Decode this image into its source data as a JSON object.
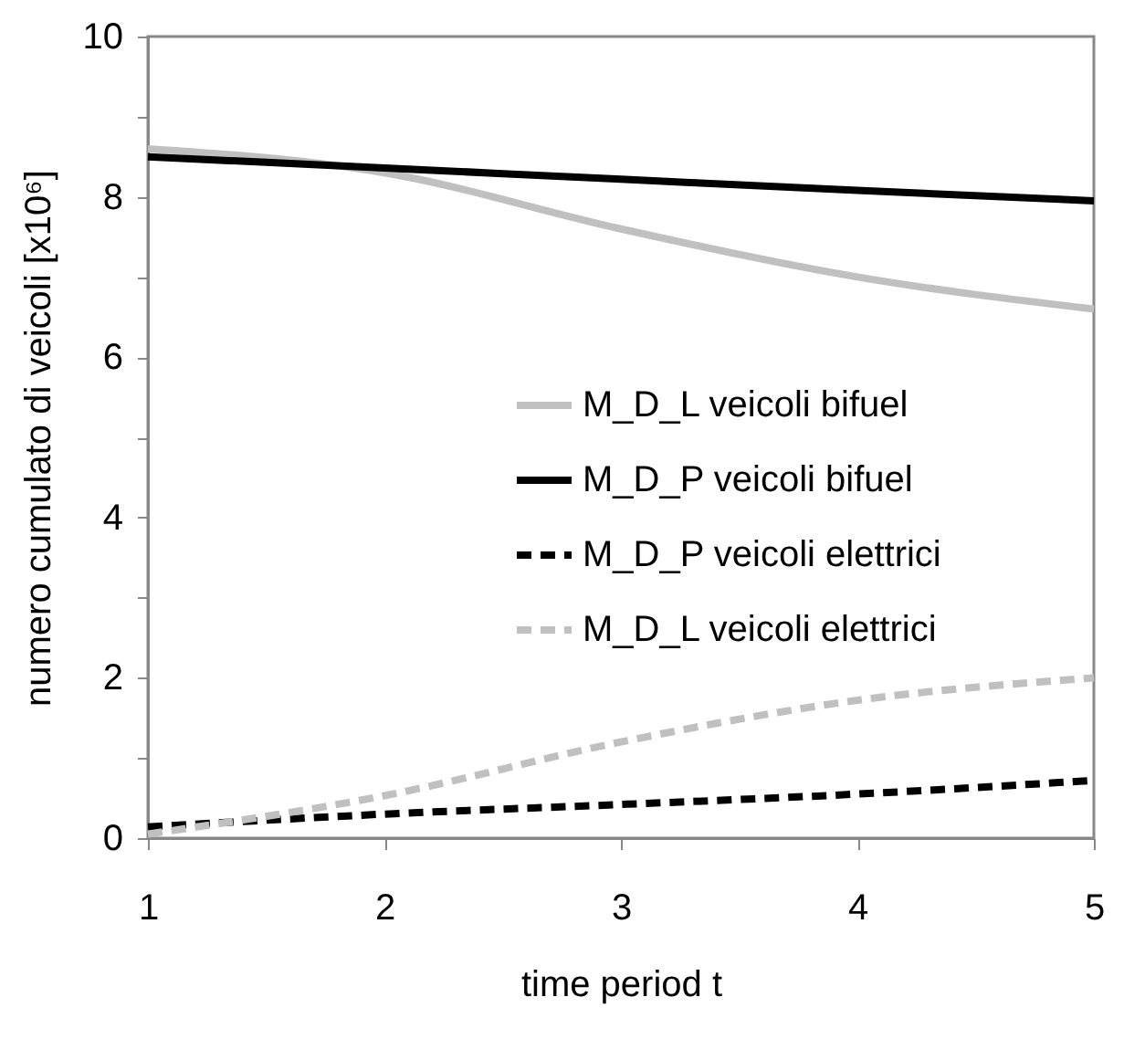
{
  "chart_data": {
    "type": "line",
    "xlabel": "time period t",
    "ylabel": "numero cumulato di veicoli [x10⁶]",
    "x": [
      1,
      2,
      3,
      4,
      5
    ],
    "series": [
      {
        "name": "M_D_L veicoli bifuel",
        "color": "#c0c0c0",
        "line_style": "solid",
        "values": [
          8.6,
          8.3,
          7.6,
          7.0,
          6.6
        ]
      },
      {
        "name": "M_D_P veicoli bifuel",
        "color": "#000000",
        "line_style": "solid",
        "values": [
          8.5,
          8.36,
          8.22,
          8.08,
          7.95
        ]
      },
      {
        "name": "M_D_P veicoli elettrici",
        "color": "#000000",
        "line_style": "dashed",
        "values": [
          0.14,
          0.3,
          0.42,
          0.55,
          0.72
        ]
      },
      {
        "name": "M_D_L veicoli elettrici",
        "color": "#c0c0c0",
        "line_style": "dashed",
        "values": [
          0.05,
          0.53,
          1.2,
          1.72,
          2.0
        ]
      }
    ],
    "xlim": [
      1,
      5
    ],
    "xticks": [
      1,
      2,
      3,
      4,
      5
    ],
    "ylim": [
      0,
      10
    ],
    "yticks": [
      0,
      {
        "value": 1,
        "label": null
      },
      2,
      {
        "value": 3,
        "label": null
      },
      4,
      {
        "value": 5,
        "label": null
      },
      6,
      {
        "value": 7,
        "label": null
      },
      8,
      {
        "value": 9,
        "label": null
      },
      10
    ],
    "grid": false,
    "legend": "right",
    "marker": "none"
  }
}
